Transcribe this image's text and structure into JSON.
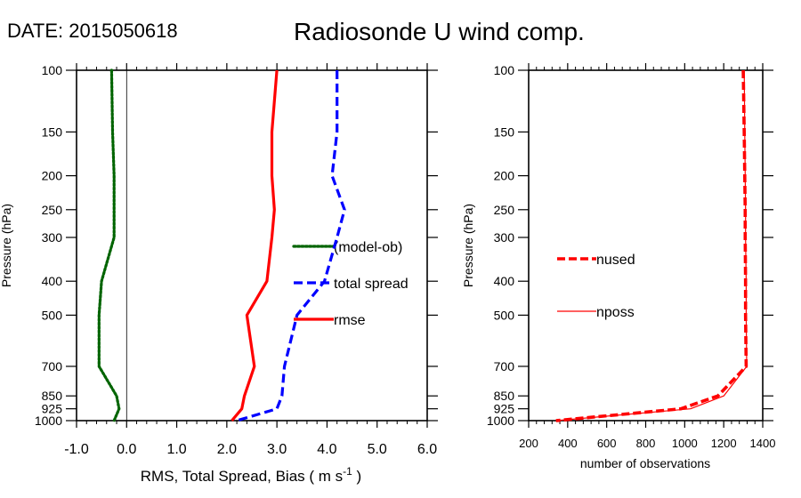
{
  "header": {
    "date_label": "DATE: 2015050618",
    "title": "Radiosonde U wind comp."
  },
  "chart_data": [
    {
      "type": "line",
      "title": "Radiosonde U wind comp.",
      "xlabel": "RMS, Total Spread, Bias ( m s",
      "xlabel_sup": "-1",
      "xlabel_close": " )",
      "ylabel": "Pressure (hPa)",
      "xlim": [
        -1.0,
        6.0
      ],
      "ylim": [
        1000,
        100
      ],
      "y_scale": "log",
      "x_ticks": [
        "-1.0",
        "0.0",
        "1.0",
        "2.0",
        "3.0",
        "4.0",
        "5.0",
        "6.0"
      ],
      "x_tick_values": [
        -1,
        0,
        1,
        2,
        3,
        4,
        5,
        6
      ],
      "y_ticks": [
        "100",
        "150",
        "200",
        "250",
        "300",
        "400",
        "500",
        "700",
        "850",
        "925",
        "1000"
      ],
      "y_tick_values": [
        100,
        150,
        200,
        250,
        300,
        400,
        500,
        700,
        850,
        925,
        1000
      ],
      "zero_line": 0,
      "series": [
        {
          "name": "(model-ob)",
          "color": "#006400",
          "style": "dotted",
          "x": [
            -0.3,
            -0.28,
            -0.25,
            -0.25,
            -0.25,
            -0.5,
            -0.55,
            -0.55,
            -0.2,
            -0.15,
            -0.25
          ],
          "y": [
            100,
            150,
            200,
            250,
            300,
            400,
            500,
            700,
            850,
            925,
            1000
          ]
        },
        {
          "name": "total spread",
          "color": "#0000ff",
          "style": "dashed",
          "x": [
            4.2,
            4.2,
            4.1,
            4.35,
            4.2,
            3.95,
            3.4,
            3.15,
            3.1,
            3.0,
            2.2
          ],
          "y": [
            100,
            150,
            200,
            250,
            300,
            400,
            500,
            700,
            850,
            925,
            1000
          ]
        },
        {
          "name": "rmse",
          "color": "#ff0000",
          "style": "solid",
          "x": [
            3.0,
            2.9,
            2.9,
            2.95,
            2.9,
            2.8,
            2.4,
            2.55,
            2.35,
            2.3,
            2.1
          ],
          "y": [
            100,
            150,
            200,
            250,
            300,
            400,
            500,
            700,
            850,
            925,
            1000
          ]
        }
      ],
      "legend": [
        "(model-ob)",
        "total spread",
        "rmse"
      ],
      "legend_position": "right-middle"
    },
    {
      "type": "line",
      "xlabel": "number of observations",
      "ylabel": "Pressure (hPa)",
      "xlim": [
        200,
        1400
      ],
      "ylim": [
        1000,
        100
      ],
      "y_scale": "log",
      "x_ticks": [
        "200",
        "400",
        "600",
        "800",
        "1000",
        "1200",
        "1400"
      ],
      "x_tick_values": [
        200,
        400,
        600,
        800,
        1000,
        1200,
        1400
      ],
      "y_ticks": [
        "100",
        "150",
        "200",
        "250",
        "300",
        "400",
        "500",
        "700",
        "850",
        "925",
        "1000"
      ],
      "y_tick_values": [
        100,
        150,
        200,
        250,
        300,
        400,
        500,
        700,
        850,
        925,
        1000
      ],
      "series": [
        {
          "name": "nused",
          "color": "#ff0000",
          "style": "dashed-thick",
          "x": [
            1300,
            1305,
            1308,
            1310,
            1310,
            1312,
            1312,
            1315,
            1170,
            980,
            340
          ],
          "y": [
            100,
            150,
            200,
            250,
            300,
            400,
            500,
            700,
            850,
            925,
            1000
          ]
        },
        {
          "name": "nposs",
          "color": "#ff0000",
          "style": "solid-thin",
          "x": [
            1305,
            1308,
            1310,
            1312,
            1312,
            1315,
            1315,
            1318,
            1200,
            1030,
            340
          ],
          "y": [
            100,
            150,
            200,
            250,
            300,
            400,
            500,
            700,
            850,
            925,
            1000
          ]
        }
      ],
      "legend": [
        "nused",
        "nposs"
      ],
      "legend_position": "left-middle"
    }
  ]
}
